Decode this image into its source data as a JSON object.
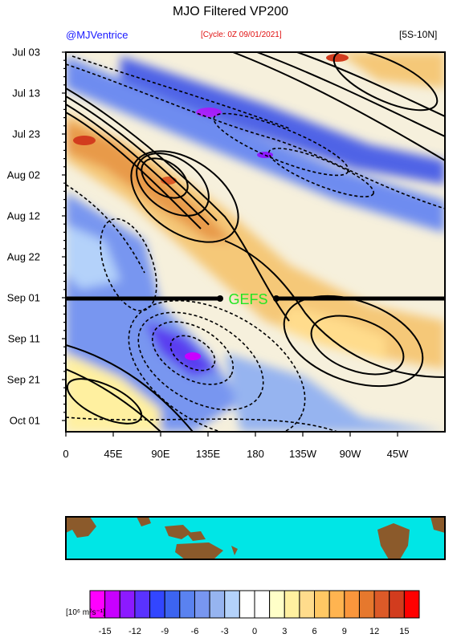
{
  "chart_data": {
    "type": "heatmap",
    "title": "MJO Filtered VP200",
    "credit": "@MJVentrice",
    "cycle": "[Cycle: 0Z 09/01/2021]",
    "region": "[5S-10N]",
    "y_tick_labels": [
      "Jul 03",
      "Jul 13",
      "Jul 23",
      "Aug 02",
      "Aug 12",
      "Aug 22",
      "Sep 01",
      "Sep 11",
      "Sep 21",
      "Oct 01"
    ],
    "x_tick_labels": [
      "0",
      "45E",
      "90E",
      "135E",
      "180",
      "135W",
      "90W",
      "45W"
    ],
    "forecast_line": {
      "date": "Sep 01",
      "label": "GEFS"
    },
    "colorbar": {
      "units_label": "[10⁶ m²s⁻¹]",
      "ticks": [
        "-15",
        "-12",
        "-9",
        "-6",
        "-3",
        "0",
        "3",
        "6",
        "9",
        "12",
        "15"
      ],
      "colors": [
        "#ff00ff",
        "#c800ff",
        "#8c1aff",
        "#5a32ff",
        "#3246ff",
        "#3c64f0",
        "#5a82f0",
        "#7896f0",
        "#96b4f0",
        "#b4d2fa",
        "#ffffff",
        "#ffffff",
        "#ffffc8",
        "#fff0a0",
        "#ffdc8c",
        "#ffc864",
        "#ffb450",
        "#fa963c",
        "#e6782d",
        "#dc5a28",
        "#d23c1e",
        "#ff0000"
      ]
    },
    "map_strip": {
      "ocean_color": "#00e6e6",
      "land_color": "#8b5a2b"
    }
  }
}
